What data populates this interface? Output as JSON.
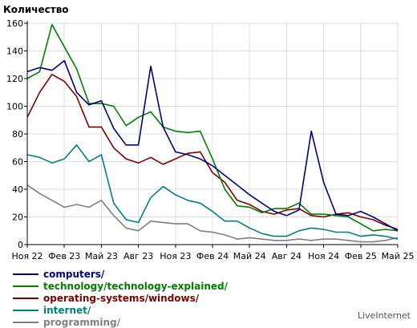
{
  "chart_data": {
    "type": "line",
    "ylabel": "Количество",
    "ylim": [
      0,
      160
    ],
    "yticks": [
      0,
      20,
      40,
      60,
      80,
      100,
      120,
      140,
      160
    ],
    "x_tick_labels": [
      "Ноя 22",
      "Фев 23",
      "Май 23",
      "Авг 23",
      "Ноя 23",
      "Фев 24",
      "Май 24",
      "Авг 24",
      "Ноя 24",
      "Фев 25",
      "Май 25"
    ],
    "x": [
      "2022-11",
      "2022-12",
      "2023-01",
      "2023-02",
      "2023-03",
      "2023-04",
      "2023-05",
      "2023-06",
      "2023-07",
      "2023-08",
      "2023-09",
      "2023-10",
      "2023-11",
      "2023-12",
      "2024-01",
      "2024-02",
      "2024-03",
      "2024-04",
      "2024-05",
      "2024-06",
      "2024-07",
      "2024-08",
      "2024-09",
      "2024-10",
      "2024-11",
      "2024-12",
      "2025-01",
      "2025-02",
      "2025-03",
      "2025-04",
      "2025-05"
    ],
    "grid": true,
    "legend_placement": "bottom-left",
    "series": [
      {
        "name": "computers/",
        "color": "#000080",
        "values": [
          125,
          128,
          126,
          133,
          110,
          101,
          104,
          84,
          72,
          72,
          129,
          85,
          67,
          65,
          62,
          57,
          50,
          43,
          36,
          30,
          24,
          21,
          25,
          82,
          45,
          22,
          21,
          24,
          20,
          15,
          10
        ]
      },
      {
        "name": "technology/technology-explained/",
        "color": "#008000",
        "values": [
          120,
          125,
          159,
          143,
          127,
          102,
          102,
          100,
          86,
          92,
          96,
          85,
          82,
          81,
          82,
          62,
          40,
          28,
          27,
          23,
          26,
          26,
          30,
          22,
          22,
          21,
          20,
          15,
          10,
          11,
          10
        ]
      },
      {
        "name": "operating-systems/windows/",
        "color": "#800000",
        "values": [
          92,
          110,
          123,
          118,
          107,
          85,
          85,
          70,
          62,
          59,
          63,
          58,
          62,
          66,
          67,
          52,
          45,
          32,
          29,
          24,
          22,
          25,
          26,
          21,
          20,
          22,
          23,
          20,
          18,
          14,
          11
        ]
      },
      {
        "name": "internet/",
        "color": "#008080",
        "values": [
          65,
          63,
          59,
          62,
          72,
          60,
          65,
          30,
          18,
          16,
          34,
          42,
          36,
          32,
          30,
          24,
          17,
          17,
          12,
          8,
          6,
          6,
          10,
          12,
          11,
          9,
          9,
          6,
          7,
          6,
          4
        ]
      },
      {
        "name": "programming/",
        "color": "#808080",
        "values": [
          43,
          37,
          32,
          27,
          29,
          27,
          32,
          21,
          12,
          10,
          17,
          16,
          15,
          15,
          10,
          9,
          7,
          4,
          5,
          4,
          3,
          3,
          4,
          3,
          4,
          4,
          3,
          2,
          2,
          3,
          5
        ]
      }
    ]
  },
  "footer": "LiveInternet"
}
